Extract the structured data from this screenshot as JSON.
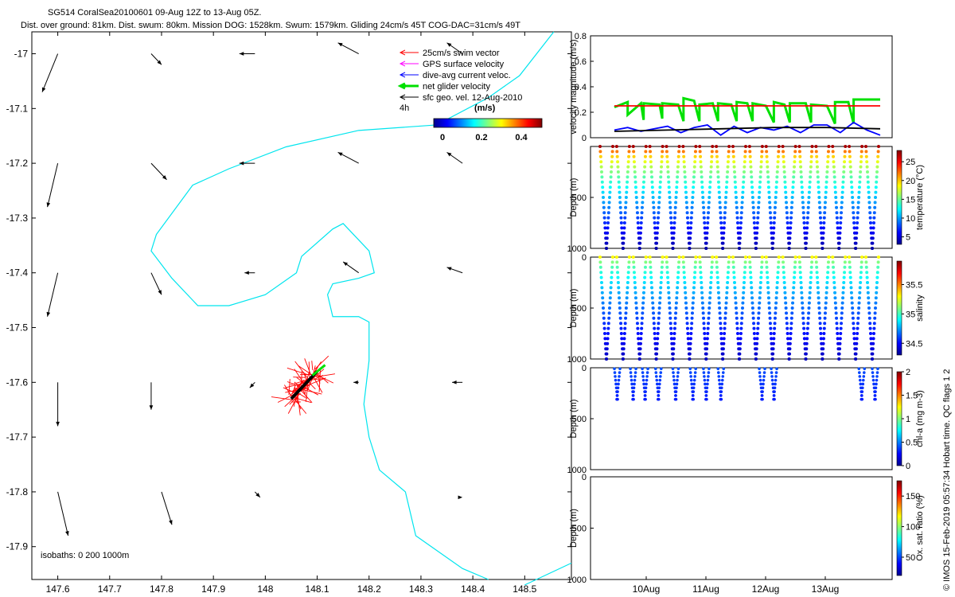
{
  "title_line1": "SG514 CoralSea20100601 09-Aug 12Z to 13-Aug 05Z.",
  "title_line2": "Dist. over ground: 81km. Dist. swum: 80km. Mission DOG: 1528km. Swum: 1579km. Gliding 24cm/s 45T COG-DAC=31cm/s 49T",
  "legend": {
    "items": [
      {
        "label": "25cm/s swim vector",
        "color": "#ff0000"
      },
      {
        "label": "GPS surface velocity",
        "color": "#ff00ff"
      },
      {
        "label": "dive-avg current veloc.",
        "color": "#0000ff"
      },
      {
        "label": "net glider velocity",
        "color": "#00e000"
      },
      {
        "label": "sfc geo. vel. 12-Aug-2010",
        "color": "#000000"
      }
    ],
    "interval": "4h",
    "colorbar_title": "(m/s)",
    "colorbar_ticks": [
      "0",
      "0.2",
      "0.4"
    ]
  },
  "isobaths_label": "isobaths: 0   200  1000m",
  "footer_vertical": "© IMOS 15-Feb-2019 05:57:34 Hobart time. QC flags 1  2",
  "colors": {
    "isobath": "#00e5ee",
    "swim": "#ff0000",
    "current": "#0000ff",
    "net": "#00e000",
    "geo": "#000000"
  },
  "chart_data": [
    {
      "type": "scatter",
      "name": "map",
      "xlim": [
        147.55,
        148.59
      ],
      "ylim": [
        -17.96,
        -16.96
      ],
      "xticks": [
        "147.6",
        "147.7",
        "147.8",
        "147.9",
        "148",
        "148.1",
        "148.2",
        "148.3",
        "148.4",
        "148.5"
      ],
      "yticks": [
        "-17",
        "-17.1",
        "-17.2",
        "-17.3",
        "-17.4",
        "-17.5",
        "-17.6",
        "-17.7",
        "-17.8",
        "-17.9"
      ],
      "isobath": [
        [
          148.556,
          -16.96
        ],
        [
          148.49,
          -17.04
        ],
        [
          148.43,
          -17.08
        ],
        [
          148.33,
          -17.13
        ],
        [
          148.18,
          -17.14
        ],
        [
          148.04,
          -17.17
        ],
        [
          147.93,
          -17.21
        ],
        [
          147.86,
          -17.24
        ],
        [
          147.79,
          -17.33
        ],
        [
          147.78,
          -17.36
        ],
        [
          147.82,
          -17.41
        ],
        [
          147.86,
          -17.45
        ],
        [
          147.87,
          -17.46
        ],
        [
          147.93,
          -17.46
        ],
        [
          148.0,
          -17.44
        ],
        [
          148.06,
          -17.4
        ],
        [
          148.07,
          -17.37
        ],
        [
          148.13,
          -17.32
        ],
        [
          148.15,
          -17.31
        ],
        [
          148.2,
          -17.36
        ],
        [
          148.21,
          -17.4
        ],
        [
          148.18,
          -17.41
        ],
        [
          148.13,
          -17.42
        ],
        [
          148.12,
          -17.44
        ],
        [
          148.13,
          -17.48
        ],
        [
          148.18,
          -17.48
        ],
        [
          148.2,
          -17.49
        ],
        [
          148.2,
          -17.56
        ],
        [
          148.19,
          -17.64
        ],
        [
          148.2,
          -17.7
        ],
        [
          148.22,
          -17.76
        ],
        [
          148.27,
          -17.8
        ],
        [
          148.29,
          -17.88
        ],
        [
          148.32,
          -17.9
        ],
        [
          148.38,
          -17.94
        ],
        [
          148.43,
          -17.96
        ]
      ],
      "isobath2": [
        [
          148.59,
          -17.93
        ],
        [
          148.5,
          -17.97
        ]
      ],
      "geo_arrows": [
        [
          147.6,
          -17.0,
          -0.03,
          -0.07
        ],
        [
          147.78,
          -17.0,
          0.02,
          -0.02
        ],
        [
          147.98,
          -17.0,
          -0.03,
          0.0
        ],
        [
          148.18,
          -17.0,
          -0.04,
          0.02
        ],
        [
          148.38,
          -17.0,
          -0.03,
          0.02
        ],
        [
          147.6,
          -17.2,
          -0.02,
          -0.08
        ],
        [
          147.78,
          -17.2,
          0.03,
          -0.03
        ],
        [
          147.98,
          -17.2,
          -0.03,
          0.0
        ],
        [
          148.18,
          -17.2,
          -0.04,
          0.02
        ],
        [
          148.38,
          -17.2,
          -0.03,
          0.02
        ],
        [
          147.6,
          -17.4,
          -0.02,
          -0.08
        ],
        [
          147.78,
          -17.4,
          0.02,
          -0.04
        ],
        [
          147.98,
          -17.4,
          -0.02,
          0.0
        ],
        [
          148.18,
          -17.4,
          -0.03,
          0.02
        ],
        [
          148.38,
          -17.4,
          -0.03,
          0.01
        ],
        [
          147.6,
          -17.6,
          0.0,
          -0.08
        ],
        [
          147.78,
          -17.6,
          0.0,
          -0.05
        ],
        [
          147.98,
          -17.6,
          -0.01,
          -0.01
        ],
        [
          148.18,
          -17.6,
          -0.01,
          0.0
        ],
        [
          148.38,
          -17.6,
          -0.02,
          0.0
        ],
        [
          147.6,
          -17.8,
          0.02,
          -0.08
        ],
        [
          147.8,
          -17.8,
          0.02,
          -0.06
        ],
        [
          147.98,
          -17.8,
          0.01,
          -0.01
        ],
        [
          148.38,
          -17.81,
          0.0,
          0.0
        ]
      ],
      "track_start": [
        148.1,
        -17.58
      ],
      "track_end": [
        148.05,
        -17.63
      ]
    },
    {
      "type": "line",
      "name": "velocity",
      "ylabel": "velocity magnitude (m/s)",
      "ylim": [
        0,
        0.8
      ],
      "yticks": [
        "0",
        "0.2",
        "0.4",
        "0.6",
        "0.8"
      ],
      "series": [
        {
          "color": "#ff0000",
          "x": [
            0,
            1
          ],
          "y": [
            0.25,
            0.25
          ]
        },
        {
          "color": "#000000",
          "x": [
            0,
            0.2,
            0.4,
            0.6,
            0.8,
            1.0
          ],
          "y": [
            0.05,
            0.06,
            0.07,
            0.08,
            0.08,
            0.07
          ]
        },
        {
          "color": "#00e000",
          "x": [
            0,
            0.05,
            0.05,
            0.1,
            0.11,
            0.11,
            0.17,
            0.18,
            0.18,
            0.24,
            0.26,
            0.26,
            0.3,
            0.32,
            0.32,
            0.37,
            0.39,
            0.39,
            0.44,
            0.46,
            0.46,
            0.5,
            0.52,
            0.52,
            0.57,
            0.6,
            0.6,
            0.64,
            0.66,
            0.66,
            0.72,
            0.74,
            0.74,
            0.8,
            0.83,
            0.83,
            0.88,
            0.9,
            0.9,
            1.0
          ],
          "y": [
            0.24,
            0.28,
            0.18,
            0.27,
            0.14,
            0.27,
            0.26,
            0.15,
            0.27,
            0.26,
            0.13,
            0.31,
            0.29,
            0.13,
            0.26,
            0.27,
            0.13,
            0.27,
            0.26,
            0.13,
            0.28,
            0.27,
            0.13,
            0.27,
            0.25,
            0.12,
            0.28,
            0.26,
            0.12,
            0.27,
            0.27,
            0.12,
            0.26,
            0.25,
            0.11,
            0.28,
            0.28,
            0.11,
            0.3,
            0.3
          ]
        },
        {
          "color": "#0000ff",
          "x": [
            0,
            0.05,
            0.1,
            0.15,
            0.2,
            0.25,
            0.3,
            0.35,
            0.4,
            0.45,
            0.5,
            0.55,
            0.6,
            0.65,
            0.7,
            0.75,
            0.8,
            0.85,
            0.9,
            0.95,
            1.0
          ],
          "y": [
            0.06,
            0.08,
            0.05,
            0.07,
            0.09,
            0.04,
            0.08,
            0.1,
            0.02,
            0.09,
            0.04,
            0.08,
            0.06,
            0.09,
            0.04,
            0.1,
            0.1,
            0.04,
            0.12,
            0.06,
            0.02
          ]
        }
      ]
    },
    {
      "type": "scatter",
      "name": "temperature",
      "ylabel": "Depth (m)",
      "clabel": "temperature (°C)",
      "ylim": [
        0,
        1000
      ],
      "yticks": [
        "500",
        "1000"
      ],
      "cticks": [
        "5",
        "10",
        "15",
        "20",
        "25"
      ],
      "crange": [
        3,
        28
      ],
      "dive_count": 17,
      "max_depth": 1000,
      "surface_value": 27,
      "deep_value": 4
    },
    {
      "type": "scatter",
      "name": "salinity",
      "ylabel": "Depth (m)",
      "clabel": "salinity",
      "ylim": [
        0,
        1000
      ],
      "yticks": [
        "0",
        "500",
        "1000"
      ],
      "cticks": [
        "34.5",
        "35",
        "35.5"
      ],
      "crange": [
        34.3,
        35.9
      ],
      "dive_count": 17,
      "max_depth": 1000,
      "surface_value": 35.3,
      "deep_value": 34.4
    },
    {
      "type": "scatter",
      "name": "chlorophyll",
      "ylabel": "Depth (m)",
      "clabel": "chl-a (mg m-3)",
      "ylim": [
        0,
        1000
      ],
      "yticks": [
        "0",
        "500",
        "1000"
      ],
      "cticks": [
        "0",
        "0.5",
        "1",
        "1.5",
        "2"
      ],
      "crange": [
        0,
        2
      ],
      "dive_positions": [
        0.03,
        0.09,
        0.135,
        0.185,
        0.25,
        0.315,
        0.365,
        0.42,
        0.575,
        0.62,
        0.95,
        1.0
      ],
      "max_depth": 300
    },
    {
      "type": "scatter",
      "name": "oxygen",
      "ylabel": "Depth (m)",
      "clabel": "Ox. sat. ratio (%)",
      "ylim": [
        0,
        1000
      ],
      "yticks": [
        "0",
        "500",
        "1000"
      ],
      "cticks": [
        "50",
        "100",
        "150"
      ],
      "crange": [
        20,
        175
      ],
      "xticks": [
        "10Aug",
        "11Aug",
        "12Aug",
        "13Aug"
      ]
    }
  ]
}
